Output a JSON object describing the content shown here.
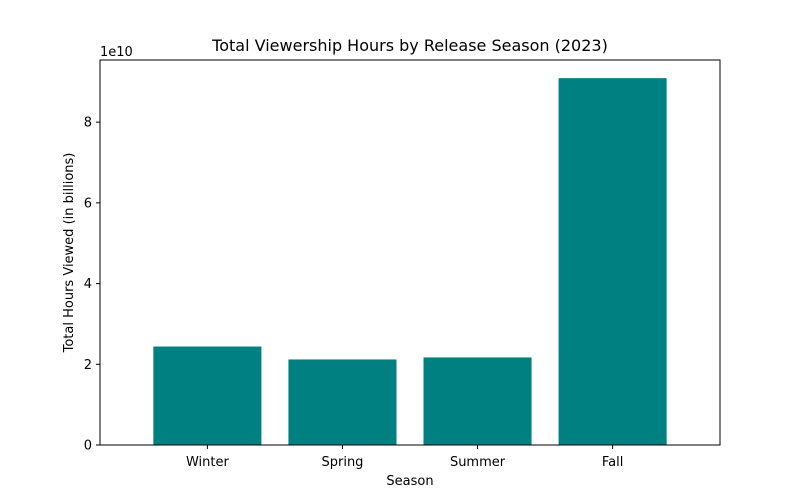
{
  "chart_data": {
    "type": "bar",
    "title": "Total Viewership Hours by Release Season (2023)",
    "xlabel": "Season",
    "ylabel": "Total Hours Viewed (in billions)",
    "categories": [
      "Winter",
      "Spring",
      "Summer",
      "Fall"
    ],
    "values": [
      24400000000,
      21200000000,
      21700000000,
      90900000000
    ],
    "ylim": [
      0,
      95400000000
    ],
    "y_ticks": [
      0,
      20000000000,
      40000000000,
      60000000000,
      80000000000
    ],
    "y_tick_labels": [
      "0",
      "2",
      "4",
      "6",
      "8"
    ],
    "y_offset_label": "1e10",
    "bar_color": "#008080",
    "grid": false,
    "legend": "none"
  }
}
